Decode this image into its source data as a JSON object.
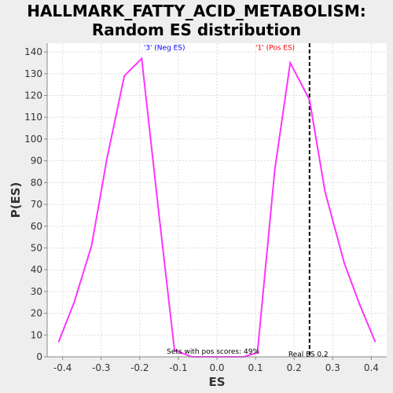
{
  "title_lines": [
    "HALLMARK_FATTY_ACID_METABOLISM:",
    "Random ES distribution"
  ],
  "chart_data": {
    "type": "line",
    "title": "HALLMARK_FATTY_ACID_METABOLISM: Random ES distribution",
    "xlabel": "ES",
    "ylabel": "P(ES)",
    "xlim": [
      -0.44,
      0.44
    ],
    "ylim": [
      0,
      144
    ],
    "xticks": [
      -0.4,
      -0.3,
      -0.2,
      -0.1,
      0.0,
      0.1,
      0.2,
      0.3,
      0.4
    ],
    "xtick_labels": [
      "-0.4",
      "-0.3",
      "-0.2",
      "-0.1",
      "0.0",
      "0.1",
      "0.2",
      "0.3",
      "0.4"
    ],
    "yticks": [
      0,
      10,
      20,
      30,
      40,
      50,
      60,
      70,
      80,
      90,
      100,
      110,
      120,
      130,
      140
    ],
    "ytick_labels": [
      "0",
      "10",
      "20",
      "30",
      "40",
      "50",
      "60",
      "70",
      "80",
      "90",
      "100",
      "110",
      "120",
      "130",
      "140"
    ],
    "grid": true,
    "series": [
      {
        "color": "#ff33ff",
        "x": [
          -0.41,
          -0.37,
          -0.325,
          -0.285,
          -0.24,
          -0.195,
          -0.15,
          -0.11,
          -0.065,
          0.0,
          0.07,
          0.105,
          0.15,
          0.19,
          0.24,
          0.28,
          0.33,
          0.37,
          0.41
        ],
        "y": [
          7,
          25,
          51,
          91,
          129,
          137,
          65,
          3,
          0,
          0,
          0,
          2,
          86,
          135,
          118,
          76,
          43,
          24,
          7
        ]
      }
    ],
    "vline": {
      "x": 0.24,
      "color": "#000000",
      "style": "dashed"
    },
    "annotations": [
      {
        "text": "'3' (Neg ES)",
        "x": -0.19,
        "y": 141,
        "color": "#0000ff"
      },
      {
        "text": "'1' (Pos ES)",
        "x": 0.1,
        "y": 141,
        "color": "#ff0000"
      },
      {
        "text": "Sets with pos scores: 49%",
        "x": -0.13,
        "y": 1.5,
        "color": "#000000"
      },
      {
        "text": "Real ES 0.2",
        "x": 0.185,
        "y": 0.2,
        "color": "#000000"
      }
    ]
  }
}
